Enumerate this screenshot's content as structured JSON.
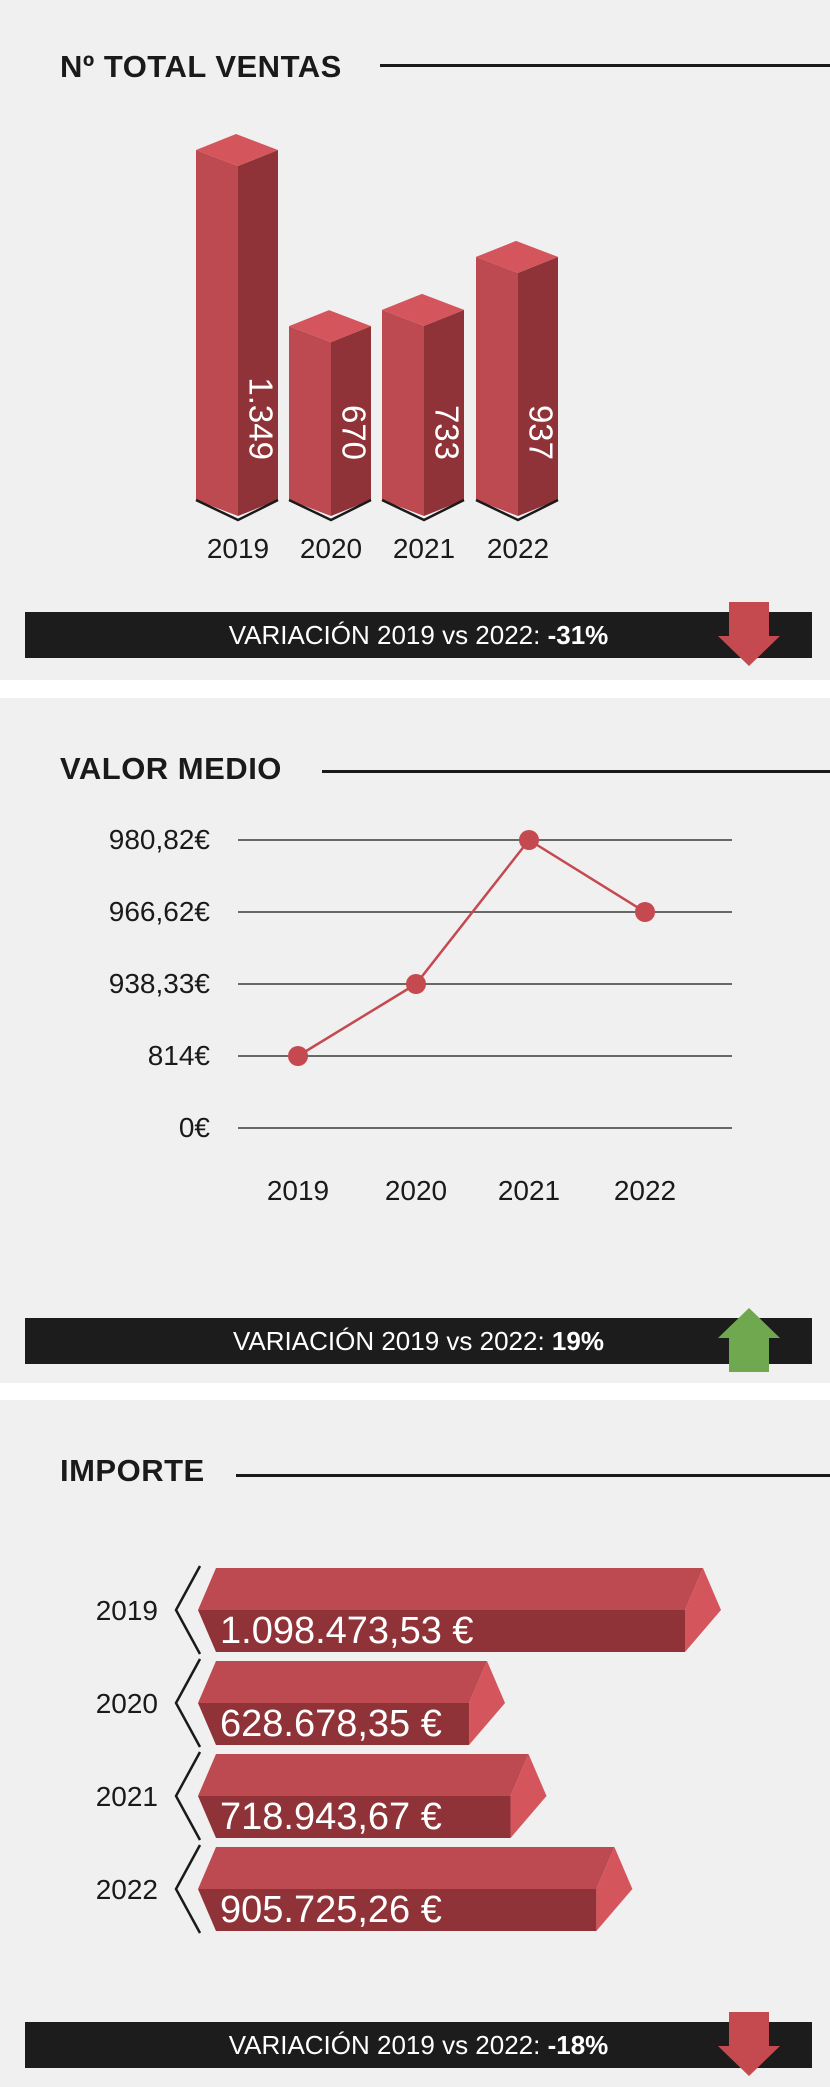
{
  "colors": {
    "red": "#c44a50",
    "green": "#6fa84e",
    "dark": "#1c1c1c",
    "panel": "#f0f0f0"
  },
  "sections": {
    "ventas": {
      "title": "Nº TOTAL VENTAS",
      "variation_label": "VARIACIÓN 2019 vs 2022:",
      "variation_value": "-31%",
      "arrow_icon": "arrow-down-icon"
    },
    "valor": {
      "title": "VALOR MEDIO",
      "variation_label": "VARIACIÓN 2019 vs 2022:",
      "variation_value": "19%",
      "arrow_icon": "arrow-up-icon"
    },
    "importe": {
      "title": "IMPORTE",
      "variation_label": "VARIACIÓN 2019 vs 2022:",
      "variation_value": "-18%",
      "arrow_icon": "arrow-down-icon"
    }
  },
  "chart_data": [
    {
      "type": "bar",
      "title": "Nº TOTAL VENTAS",
      "categories": [
        "2019",
        "2020",
        "2021",
        "2022"
      ],
      "values": [
        1349,
        670,
        733,
        937
      ],
      "labels": [
        "1.349",
        "670",
        "733",
        "937"
      ]
    },
    {
      "type": "line",
      "title": "VALOR MEDIO",
      "categories": [
        "2019",
        "2020",
        "2021",
        "2022"
      ],
      "values": [
        814,
        938.33,
        980.82,
        966.62
      ],
      "ytick_labels": [
        "980,82€",
        "966,62€",
        "938,33€",
        "814€",
        "0€"
      ]
    },
    {
      "type": "bar",
      "orientation": "horizontal",
      "title": "IMPORTE",
      "categories": [
        "2019",
        "2020",
        "2021",
        "2022"
      ],
      "values": [
        1098473.53,
        628678.35,
        718943.67,
        905725.26
      ],
      "labels": [
        "1.098.473,53 €",
        "628.678,35 €",
        "718.943,67 €",
        "905.725,26 €"
      ]
    }
  ]
}
